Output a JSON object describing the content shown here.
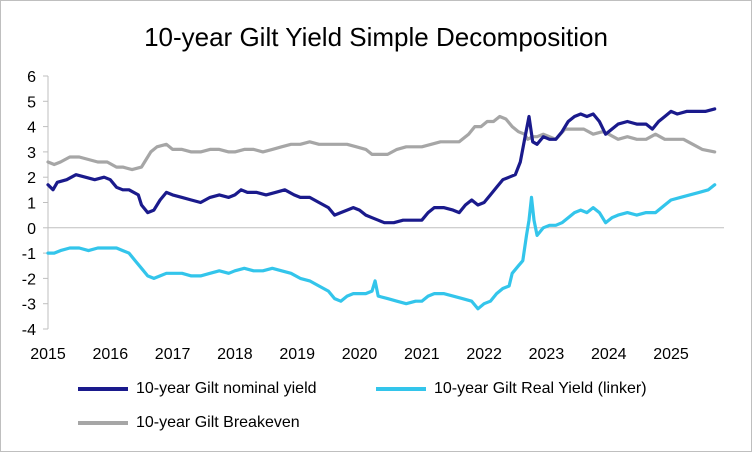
{
  "chart_data": {
    "type": "line",
    "title": "10-year  Gilt Yield Simple Decomposition",
    "xlabel": "",
    "ylabel": "",
    "xlim": [
      2015,
      2025.85
    ],
    "ylim": [
      -4,
      6
    ],
    "x_ticks": [
      "2015",
      "2016",
      "2017",
      "2018",
      "2019",
      "2020",
      "2021",
      "2022",
      "2023",
      "2024",
      "2025"
    ],
    "y_ticks": [
      "6",
      "5",
      "4",
      "3",
      "2",
      "1",
      "0",
      "-1",
      "-2",
      "-3",
      "-4"
    ],
    "x_tick_values": [
      2015,
      2016,
      2017,
      2018,
      2019,
      2020,
      2021,
      2022,
      2023,
      2024,
      2025
    ],
    "y_tick_values": [
      6,
      5,
      4,
      3,
      2,
      1,
      0,
      -1,
      -2,
      -3,
      -4
    ],
    "grid": false,
    "legend_position": "bottom",
    "series": [
      {
        "name": "10-year Gilt nominal yield",
        "color": "#1a1a8c",
        "points": [
          [
            2015.0,
            1.7
          ],
          [
            2015.08,
            1.5
          ],
          [
            2015.15,
            1.8
          ],
          [
            2015.3,
            1.9
          ],
          [
            2015.45,
            2.1
          ],
          [
            2015.6,
            2.0
          ],
          [
            2015.75,
            1.9
          ],
          [
            2015.9,
            2.0
          ],
          [
            2016.0,
            1.9
          ],
          [
            2016.1,
            1.6
          ],
          [
            2016.2,
            1.5
          ],
          [
            2016.3,
            1.5
          ],
          [
            2016.45,
            1.3
          ],
          [
            2016.5,
            0.9
          ],
          [
            2016.6,
            0.6
          ],
          [
            2016.7,
            0.7
          ],
          [
            2016.8,
            1.1
          ],
          [
            2016.9,
            1.4
          ],
          [
            2017.0,
            1.3
          ],
          [
            2017.15,
            1.2
          ],
          [
            2017.3,
            1.1
          ],
          [
            2017.45,
            1.0
          ],
          [
            2017.6,
            1.2
          ],
          [
            2017.75,
            1.3
          ],
          [
            2017.9,
            1.2
          ],
          [
            2018.0,
            1.3
          ],
          [
            2018.1,
            1.5
          ],
          [
            2018.2,
            1.4
          ],
          [
            2018.35,
            1.4
          ],
          [
            2018.5,
            1.3
          ],
          [
            2018.65,
            1.4
          ],
          [
            2018.8,
            1.5
          ],
          [
            2018.95,
            1.3
          ],
          [
            2019.05,
            1.2
          ],
          [
            2019.2,
            1.2
          ],
          [
            2019.35,
            1.0
          ],
          [
            2019.5,
            0.8
          ],
          [
            2019.6,
            0.5
          ],
          [
            2019.7,
            0.6
          ],
          [
            2019.8,
            0.7
          ],
          [
            2019.9,
            0.8
          ],
          [
            2020.0,
            0.7
          ],
          [
            2020.1,
            0.5
          ],
          [
            2020.2,
            0.4
          ],
          [
            2020.3,
            0.3
          ],
          [
            2020.4,
            0.2
          ],
          [
            2020.55,
            0.2
          ],
          [
            2020.7,
            0.3
          ],
          [
            2020.85,
            0.3
          ],
          [
            2021.0,
            0.3
          ],
          [
            2021.1,
            0.6
          ],
          [
            2021.2,
            0.8
          ],
          [
            2021.35,
            0.8
          ],
          [
            2021.5,
            0.7
          ],
          [
            2021.6,
            0.6
          ],
          [
            2021.7,
            0.9
          ],
          [
            2021.8,
            1.1
          ],
          [
            2021.9,
            0.9
          ],
          [
            2022.0,
            1.0
          ],
          [
            2022.1,
            1.3
          ],
          [
            2022.2,
            1.6
          ],
          [
            2022.3,
            1.9
          ],
          [
            2022.4,
            2.0
          ],
          [
            2022.5,
            2.1
          ],
          [
            2022.58,
            2.6
          ],
          [
            2022.65,
            3.5
          ],
          [
            2022.72,
            4.4
          ],
          [
            2022.78,
            3.4
          ],
          [
            2022.85,
            3.3
          ],
          [
            2022.95,
            3.6
          ],
          [
            2023.05,
            3.5
          ],
          [
            2023.15,
            3.5
          ],
          [
            2023.25,
            3.8
          ],
          [
            2023.35,
            4.2
          ],
          [
            2023.45,
            4.4
          ],
          [
            2023.55,
            4.5
          ],
          [
            2023.65,
            4.4
          ],
          [
            2023.75,
            4.5
          ],
          [
            2023.85,
            4.2
          ],
          [
            2023.95,
            3.7
          ],
          [
            2024.05,
            3.9
          ],
          [
            2024.15,
            4.1
          ],
          [
            2024.3,
            4.2
          ],
          [
            2024.45,
            4.1
          ],
          [
            2024.6,
            4.1
          ],
          [
            2024.7,
            3.9
          ],
          [
            2024.8,
            4.2
          ],
          [
            2024.9,
            4.4
          ],
          [
            2025.0,
            4.6
          ],
          [
            2025.1,
            4.5
          ],
          [
            2025.25,
            4.6
          ],
          [
            2025.4,
            4.6
          ],
          [
            2025.55,
            4.6
          ],
          [
            2025.7,
            4.7
          ]
        ]
      },
      {
        "name": "10-year Gilt Real Yield (linker)",
        "color": "#33c5eb",
        "points": [
          [
            2015.0,
            -1.0
          ],
          [
            2015.1,
            -1.0
          ],
          [
            2015.2,
            -0.9
          ],
          [
            2015.35,
            -0.8
          ],
          [
            2015.5,
            -0.8
          ],
          [
            2015.65,
            -0.9
          ],
          [
            2015.8,
            -0.8
          ],
          [
            2015.95,
            -0.8
          ],
          [
            2016.1,
            -0.8
          ],
          [
            2016.2,
            -0.9
          ],
          [
            2016.3,
            -1.0
          ],
          [
            2016.4,
            -1.3
          ],
          [
            2016.5,
            -1.6
          ],
          [
            2016.6,
            -1.9
          ],
          [
            2016.7,
            -2.0
          ],
          [
            2016.8,
            -1.9
          ],
          [
            2016.9,
            -1.8
          ],
          [
            2017.0,
            -1.8
          ],
          [
            2017.15,
            -1.8
          ],
          [
            2017.3,
            -1.9
          ],
          [
            2017.45,
            -1.9
          ],
          [
            2017.6,
            -1.8
          ],
          [
            2017.75,
            -1.7
          ],
          [
            2017.9,
            -1.8
          ],
          [
            2018.0,
            -1.7
          ],
          [
            2018.15,
            -1.6
          ],
          [
            2018.3,
            -1.7
          ],
          [
            2018.45,
            -1.7
          ],
          [
            2018.6,
            -1.6
          ],
          [
            2018.75,
            -1.7
          ],
          [
            2018.9,
            -1.8
          ],
          [
            2019.05,
            -2.0
          ],
          [
            2019.2,
            -2.1
          ],
          [
            2019.35,
            -2.3
          ],
          [
            2019.5,
            -2.5
          ],
          [
            2019.6,
            -2.8
          ],
          [
            2019.7,
            -2.9
          ],
          [
            2019.8,
            -2.7
          ],
          [
            2019.9,
            -2.6
          ],
          [
            2020.0,
            -2.6
          ],
          [
            2020.1,
            -2.6
          ],
          [
            2020.2,
            -2.5
          ],
          [
            2020.25,
            -2.1
          ],
          [
            2020.3,
            -2.7
          ],
          [
            2020.45,
            -2.8
          ],
          [
            2020.6,
            -2.9
          ],
          [
            2020.75,
            -3.0
          ],
          [
            2020.9,
            -2.9
          ],
          [
            2021.0,
            -2.9
          ],
          [
            2021.1,
            -2.7
          ],
          [
            2021.2,
            -2.6
          ],
          [
            2021.35,
            -2.6
          ],
          [
            2021.5,
            -2.7
          ],
          [
            2021.65,
            -2.8
          ],
          [
            2021.8,
            -2.9
          ],
          [
            2021.9,
            -3.2
          ],
          [
            2022.0,
            -3.0
          ],
          [
            2022.1,
            -2.9
          ],
          [
            2022.2,
            -2.6
          ],
          [
            2022.3,
            -2.4
          ],
          [
            2022.4,
            -2.3
          ],
          [
            2022.45,
            -1.8
          ],
          [
            2022.55,
            -1.5
          ],
          [
            2022.62,
            -1.3
          ],
          [
            2022.68,
            -0.3
          ],
          [
            2022.72,
            0.3
          ],
          [
            2022.76,
            1.2
          ],
          [
            2022.8,
            0.3
          ],
          [
            2022.85,
            -0.3
          ],
          [
            2022.95,
            0.0
          ],
          [
            2023.05,
            0.1
          ],
          [
            2023.15,
            0.1
          ],
          [
            2023.25,
            0.2
          ],
          [
            2023.35,
            0.4
          ],
          [
            2023.45,
            0.6
          ],
          [
            2023.55,
            0.7
          ],
          [
            2023.65,
            0.6
          ],
          [
            2023.75,
            0.8
          ],
          [
            2023.85,
            0.6
          ],
          [
            2023.95,
            0.2
          ],
          [
            2024.05,
            0.4
          ],
          [
            2024.15,
            0.5
          ],
          [
            2024.3,
            0.6
          ],
          [
            2024.45,
            0.5
          ],
          [
            2024.6,
            0.6
          ],
          [
            2024.75,
            0.6
          ],
          [
            2024.9,
            0.9
          ],
          [
            2025.0,
            1.1
          ],
          [
            2025.15,
            1.2
          ],
          [
            2025.3,
            1.3
          ],
          [
            2025.45,
            1.4
          ],
          [
            2025.6,
            1.5
          ],
          [
            2025.7,
            1.7
          ]
        ]
      },
      {
        "name": "10-year Gilt Breakeven",
        "color": "#a6a6a6",
        "points": [
          [
            2015.0,
            2.6
          ],
          [
            2015.1,
            2.5
          ],
          [
            2015.2,
            2.6
          ],
          [
            2015.35,
            2.8
          ],
          [
            2015.5,
            2.8
          ],
          [
            2015.65,
            2.7
          ],
          [
            2015.8,
            2.6
          ],
          [
            2015.95,
            2.6
          ],
          [
            2016.1,
            2.4
          ],
          [
            2016.2,
            2.4
          ],
          [
            2016.35,
            2.3
          ],
          [
            2016.5,
            2.4
          ],
          [
            2016.55,
            2.6
          ],
          [
            2016.65,
            3.0
          ],
          [
            2016.75,
            3.2
          ],
          [
            2016.9,
            3.3
          ],
          [
            2017.0,
            3.1
          ],
          [
            2017.15,
            3.1
          ],
          [
            2017.3,
            3.0
          ],
          [
            2017.45,
            3.0
          ],
          [
            2017.6,
            3.1
          ],
          [
            2017.75,
            3.1
          ],
          [
            2017.9,
            3.0
          ],
          [
            2018.0,
            3.0
          ],
          [
            2018.15,
            3.1
          ],
          [
            2018.3,
            3.1
          ],
          [
            2018.45,
            3.0
          ],
          [
            2018.6,
            3.1
          ],
          [
            2018.75,
            3.2
          ],
          [
            2018.9,
            3.3
          ],
          [
            2019.05,
            3.3
          ],
          [
            2019.2,
            3.4
          ],
          [
            2019.35,
            3.3
          ],
          [
            2019.5,
            3.3
          ],
          [
            2019.65,
            3.3
          ],
          [
            2019.8,
            3.3
          ],
          [
            2019.95,
            3.2
          ],
          [
            2020.1,
            3.1
          ],
          [
            2020.2,
            2.9
          ],
          [
            2020.3,
            2.9
          ],
          [
            2020.45,
            2.9
          ],
          [
            2020.6,
            3.1
          ],
          [
            2020.75,
            3.2
          ],
          [
            2020.9,
            3.2
          ],
          [
            2021.0,
            3.2
          ],
          [
            2021.15,
            3.3
          ],
          [
            2021.3,
            3.4
          ],
          [
            2021.45,
            3.4
          ],
          [
            2021.6,
            3.4
          ],
          [
            2021.75,
            3.7
          ],
          [
            2021.85,
            4.0
          ],
          [
            2021.95,
            4.0
          ],
          [
            2022.05,
            4.2
          ],
          [
            2022.15,
            4.2
          ],
          [
            2022.25,
            4.4
          ],
          [
            2022.35,
            4.3
          ],
          [
            2022.45,
            4.0
          ],
          [
            2022.55,
            3.8
          ],
          [
            2022.65,
            3.7
          ],
          [
            2022.7,
            3.5
          ],
          [
            2022.78,
            3.6
          ],
          [
            2022.85,
            3.6
          ],
          [
            2022.95,
            3.7
          ],
          [
            2023.05,
            3.6
          ],
          [
            2023.15,
            3.5
          ],
          [
            2023.3,
            3.9
          ],
          [
            2023.45,
            3.9
          ],
          [
            2023.6,
            3.9
          ],
          [
            2023.75,
            3.7
          ],
          [
            2023.9,
            3.8
          ],
          [
            2024.0,
            3.7
          ],
          [
            2024.15,
            3.5
          ],
          [
            2024.3,
            3.6
          ],
          [
            2024.45,
            3.5
          ],
          [
            2024.6,
            3.5
          ],
          [
            2024.75,
            3.7
          ],
          [
            2024.9,
            3.5
          ],
          [
            2025.05,
            3.5
          ],
          [
            2025.2,
            3.5
          ],
          [
            2025.35,
            3.3
          ],
          [
            2025.5,
            3.1
          ],
          [
            2025.7,
            3.0
          ]
        ]
      }
    ]
  }
}
